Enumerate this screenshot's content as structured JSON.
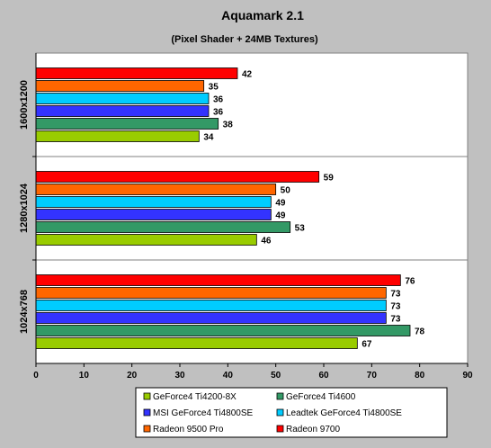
{
  "chart_data": {
    "type": "bar",
    "orientation": "horizontal",
    "title": "Aquamark 2.1",
    "subtitle": "(Pixel Shader + 24MB Textures)",
    "xlabel": "",
    "ylabel": "",
    "xlim": [
      0,
      90
    ],
    "xticks": [
      0,
      10,
      20,
      30,
      40,
      50,
      60,
      70,
      80,
      90
    ],
    "grid": "vertical-category-separators",
    "legend_position": "bottom",
    "categories": [
      "1600x1200",
      "1280x1024",
      "1024x768"
    ],
    "series": [
      {
        "name": "GeForce4 Ti4200-8X",
        "color": "#99cc00",
        "values": [
          34,
          46,
          67
        ]
      },
      {
        "name": "GeForce4 Ti4600",
        "color": "#339966",
        "values": [
          38,
          53,
          78
        ]
      },
      {
        "name": "MSI GeForce4 Ti4800SE",
        "color": "#3333ff",
        "values": [
          36,
          49,
          73
        ]
      },
      {
        "name": "Leadtek GeForce4 Ti4800SE",
        "color": "#00ccff",
        "values": [
          36,
          49,
          73
        ]
      },
      {
        "name": "Radeon 9500 Pro",
        "color": "#ff6600",
        "values": [
          35,
          50,
          73
        ]
      },
      {
        "name": "Radeon 9700",
        "color": "#ff0000",
        "values": [
          42,
          59,
          76
        ]
      }
    ],
    "legend_order": [
      0,
      1,
      2,
      3,
      4,
      5
    ]
  }
}
